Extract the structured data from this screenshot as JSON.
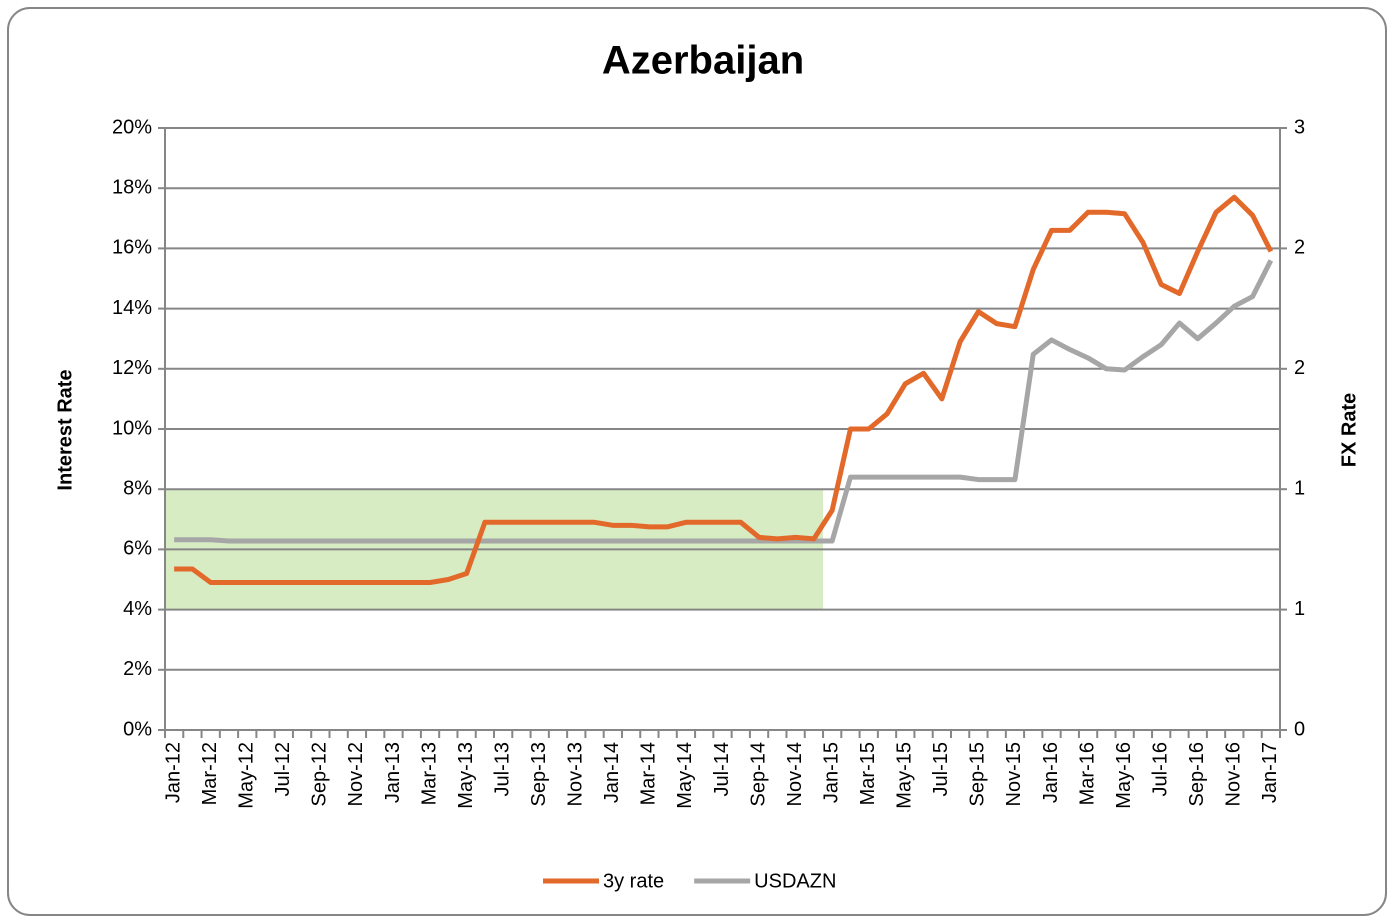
{
  "chart_data": {
    "type": "line",
    "title": "Azerbaijan",
    "ylabel": "Interest Rate",
    "y2label": "FX Rate",
    "categories": [
      "Jan-12",
      null,
      "Mar-12",
      null,
      "May-12",
      null,
      "Jul-12",
      null,
      "Sep-12",
      null,
      "Nov-12",
      null,
      "Jan-13",
      null,
      "Mar-13",
      null,
      "May-13",
      null,
      "Jul-13",
      null,
      "Sep-13",
      null,
      "Nov-13",
      null,
      "Jan-14",
      null,
      "Mar-14",
      null,
      "May-14",
      null,
      "Jul-14",
      null,
      "Sep-14",
      null,
      "Nov-14",
      null,
      "Jan-15",
      null,
      "Mar-15",
      null,
      "May-15",
      null,
      "Jul-15",
      null,
      "Sep-15",
      null,
      "Nov-15",
      null,
      "Jan-16",
      null,
      "Mar-16",
      null,
      "May-16",
      null,
      "Jul-16",
      null,
      "Sep-16",
      null,
      "Nov-16",
      null,
      "Jan-17"
    ],
    "series": [
      {
        "name": "3y rate",
        "color": "#e2692a",
        "values": [
          5.35,
          5.35,
          4.9,
          4.9,
          4.9,
          4.9,
          4.9,
          4.9,
          4.9,
          4.9,
          4.9,
          4.9,
          4.9,
          4.9,
          4.9,
          5.0,
          5.2,
          6.9,
          6.9,
          6.9,
          6.9,
          6.9,
          6.9,
          6.9,
          6.8,
          6.8,
          6.75,
          6.75,
          6.9,
          6.9,
          6.9,
          6.9,
          6.4,
          6.35,
          6.4,
          6.35,
          7.3,
          10.0,
          10.0,
          10.5,
          11.5,
          11.85,
          11.0,
          12.9,
          13.9,
          13.5,
          13.4,
          15.3,
          16.6,
          16.6,
          17.2,
          17.2,
          17.15,
          16.2,
          14.8,
          14.5,
          15.9,
          17.2,
          17.7,
          17.1,
          15.9
        ]
      },
      {
        "name": "USDAZN",
        "color": "#a6a6a6",
        "axis": "y2",
        "values": [
          0.79,
          0.79,
          0.79,
          0.785,
          0.785,
          0.785,
          0.785,
          0.785,
          0.785,
          0.785,
          0.785,
          0.785,
          0.785,
          0.785,
          0.785,
          0.785,
          0.785,
          0.785,
          0.785,
          0.785,
          0.785,
          0.785,
          0.785,
          0.785,
          0.785,
          0.785,
          0.785,
          0.785,
          0.785,
          0.785,
          0.785,
          0.785,
          0.785,
          0.785,
          0.785,
          0.785,
          0.785,
          1.05,
          1.05,
          1.05,
          1.05,
          1.05,
          1.05,
          1.05,
          1.04,
          1.04,
          1.04,
          1.56,
          1.62,
          1.58,
          1.545,
          1.5,
          1.495,
          1.55,
          1.6,
          1.69,
          1.625,
          1.69,
          1.76,
          1.8,
          1.95
        ]
      }
    ],
    "ylim": [
      0,
      20
    ],
    "yticks": [
      {
        "value": 0,
        "label": "0%"
      },
      {
        "value": 2,
        "label": "2%"
      },
      {
        "value": 4,
        "label": "4%"
      },
      {
        "value": 6,
        "label": "6%"
      },
      {
        "value": 8,
        "label": "8%"
      },
      {
        "value": 10,
        "label": "10%"
      },
      {
        "value": 12,
        "label": "12%"
      },
      {
        "value": 14,
        "label": "14%"
      },
      {
        "value": 16,
        "label": "16%"
      },
      {
        "value": 18,
        "label": "18%"
      },
      {
        "value": 20,
        "label": "20%"
      }
    ],
    "y2lim": [
      0,
      2.5
    ],
    "y2ticks": [
      0,
      {
        "value": 0.5,
        "label": "1"
      },
      1,
      {
        "value": 1.5,
        "label": "2"
      },
      2,
      {
        "value": 2.5,
        "label": "3"
      }
    ],
    "grid": true,
    "legend": "bottom",
    "highlight": {
      "y": [
        4,
        8
      ],
      "categories": [
        0,
        35
      ],
      "color": "#d7ecc3"
    }
  }
}
